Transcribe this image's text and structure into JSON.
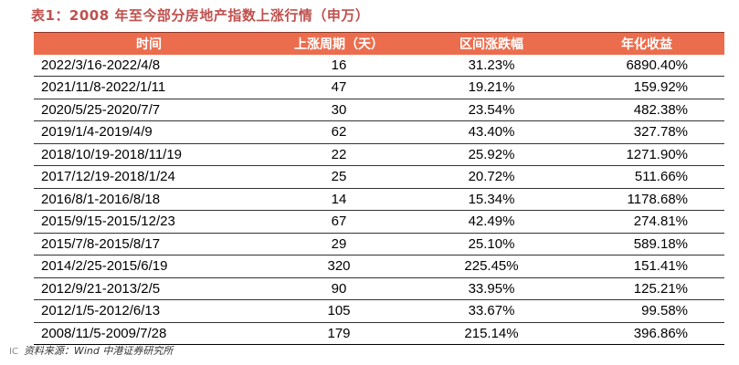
{
  "title": "表1：2008 年至今部分房地产指数上涨行情（申万）",
  "headers": [
    "时间",
    "上涨周期（天）",
    "区间涨跌幅",
    "年化收益"
  ],
  "rows": [
    {
      "period": "2022/3/16-2022/4/8",
      "days": "16",
      "change": "31.23%",
      "annual": "6890.40%"
    },
    {
      "period": "2021/11/8-2022/1/11",
      "days": "47",
      "change": "19.21%",
      "annual": "159.92%"
    },
    {
      "period": "2020/5/25-2020/7/7",
      "days": "30",
      "change": "23.54%",
      "annual": "482.38%"
    },
    {
      "period": "2019/1/4-2019/4/9",
      "days": "62",
      "change": "43.40%",
      "annual": "327.78%"
    },
    {
      "period": "2018/10/19-2018/11/19",
      "days": "22",
      "change": "25.92%",
      "annual": "1271.90%"
    },
    {
      "period": "2017/12/19-2018/1/24",
      "days": "25",
      "change": "20.72%",
      "annual": "511.66%"
    },
    {
      "period": "2016/8/1-2016/8/18",
      "days": "14",
      "change": "15.34%",
      "annual": "1178.68%"
    },
    {
      "period": "2015/9/15-2015/12/23",
      "days": "67",
      "change": "42.49%",
      "annual": "274.81%"
    },
    {
      "period": "2015/7/8-2015/8/17",
      "days": "29",
      "change": "25.10%",
      "annual": "589.18%"
    },
    {
      "period": "2014/2/25-2015/6/19",
      "days": "320",
      "change": "225.45%",
      "annual": "151.41%"
    },
    {
      "period": "2012/9/21-2013/2/5",
      "days": "90",
      "change": "33.95%",
      "annual": "125.21%"
    },
    {
      "period": "2012/1/5-2012/6/13",
      "days": "105",
      "change": "33.67%",
      "annual": "99.58%"
    },
    {
      "period": "2008/11/5-2009/7/28",
      "days": "179",
      "change": "215.14%",
      "annual": "396.86%"
    }
  ],
  "source": "资料来源：Wind 中港证券研究所",
  "watermark": "IC"
}
